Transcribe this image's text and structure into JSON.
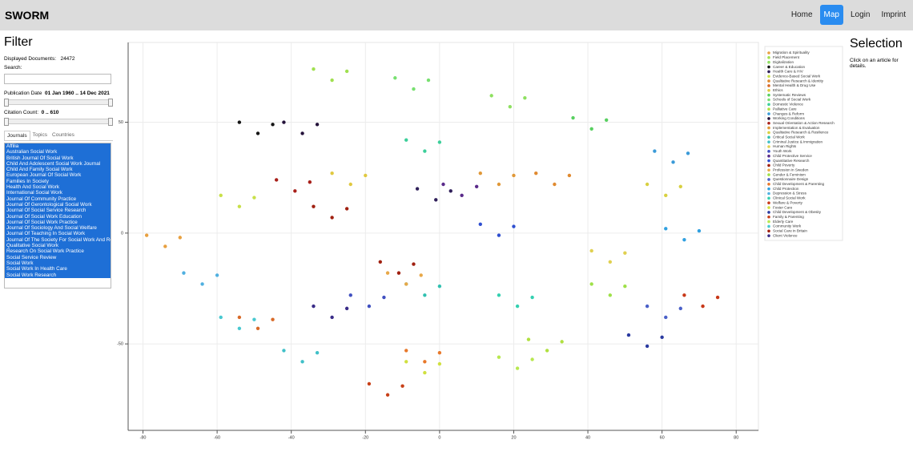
{
  "header": {
    "brand": "SWORM",
    "nav": [
      "Home",
      "Map",
      "Login",
      "Imprint"
    ]
  },
  "filter": {
    "title": "Filter",
    "documents_label": "Displayed Documents:",
    "documents_value": "24472",
    "search_label": "Search:",
    "date_label": "Publication Date",
    "date_value": "01 Jan 1960 .. 14 Dec 2021",
    "citation_label": "Citation Count:",
    "citation_value": "0 .. 610",
    "tabs": [
      "Journals",
      "Topics",
      "Countries"
    ],
    "journals": [
      "Affilia",
      "Australian Social Work",
      "British Journal Of Social Work",
      "Child And Adolescent Social Work Journal",
      "Child And Family Social Work",
      "European Journal Of Social Work",
      "Families In Society",
      "Health And Social Work",
      "International Social Work",
      "Journal Of Community Practice",
      "Journal Of Gerontological Social Work",
      "Journal Of Social Service Research",
      "Journal Of Social Work Education",
      "Journal Of Social Work Practice",
      "Journal Of Sociology And Social Welfare",
      "Journal Of Teaching In Social Work",
      "Journal Of The Society For Social Work And Research",
      "Qualitative Social Work",
      "Research On Social Work Practice",
      "Social Service Review",
      "Social Work",
      "Social Work In Health Care",
      "Social Work Research"
    ]
  },
  "selection": {
    "title": "Selection",
    "hint": "Click on an article for details."
  },
  "chart_data": {
    "type": "scatter",
    "xlim": [
      -84,
      86
    ],
    "ylim": [
      -89,
      86
    ],
    "xticks": [
      -80,
      -60,
      -40,
      -20,
      0,
      20,
      40,
      60,
      80
    ],
    "yticks": [
      -50,
      0,
      50
    ],
    "grid": true,
    "series": [
      {
        "name": "Migration & Spirituality",
        "color": "#e8a040",
        "x": [
          -79,
          -74,
          -70
        ],
        "values": [
          -1,
          -6,
          -2
        ]
      },
      {
        "name": "Field Placement",
        "color": "#a0e050",
        "x": [
          -34,
          -29,
          -25
        ],
        "values": [
          74,
          69,
          73
        ]
      },
      {
        "name": "Digitalization",
        "color": "#8ee060",
        "x": [
          14,
          19,
          23
        ],
        "values": [
          62,
          57,
          61
        ]
      },
      {
        "name": "Career & Education",
        "color": "#151515",
        "x": [
          -54,
          -49,
          -45
        ],
        "values": [
          50,
          45,
          49
        ]
      },
      {
        "name": "Health Care & HIV",
        "color": "#30205a",
        "x": [
          -6,
          -1,
          3
        ],
        "values": [
          20,
          15,
          19
        ]
      },
      {
        "name": "Evidence-Based Social Work",
        "color": "#c8e048",
        "x": [
          -59,
          -54,
          -50
        ],
        "values": [
          17,
          12,
          16
        ]
      },
      {
        "name": "Qualitative Research & Identity",
        "color": "#e08a30",
        "x": [
          26,
          31,
          35
        ],
        "values": [
          27,
          22,
          26
        ]
      },
      {
        "name": "Mental Health & Drug Use",
        "color": "#d86a28",
        "x": [
          -54,
          -49,
          -45
        ],
        "values": [
          -38,
          -43,
          -39
        ]
      },
      {
        "name": "Ethics",
        "color": "#e0c840",
        "x": [
          -29,
          -24,
          -20
        ],
        "values": [
          27,
          22,
          26
        ]
      },
      {
        "name": "Systematic Reviews",
        "color": "#58d060",
        "x": [
          36,
          41,
          45
        ],
        "values": [
          52,
          47,
          51
        ]
      },
      {
        "name": "Schools of Social Work",
        "color": "#78e070",
        "x": [
          -12,
          -7,
          -3
        ],
        "values": [
          70,
          65,
          69
        ]
      },
      {
        "name": "Domestic Violence",
        "color": "#3ccf9a",
        "x": [
          -9,
          -4,
          0
        ],
        "values": [
          42,
          37,
          41
        ]
      },
      {
        "name": "Palliative Care",
        "color": "#b0e040",
        "x": [
          24,
          29,
          33
        ],
        "values": [
          -48,
          -53,
          -49
        ]
      },
      {
        "name": "Changes & Reform",
        "color": "#3a9ad8",
        "x": [
          58,
          63,
          67
        ],
        "values": [
          37,
          32,
          36
        ]
      },
      {
        "name": "Working Conditions",
        "color": "#24123a",
        "x": [
          -42,
          -37,
          -33
        ],
        "values": [
          50,
          45,
          49
        ]
      },
      {
        "name": "Sexual Orientation & Action Research",
        "color": "#a8201a",
        "x": [
          -44,
          -39,
          -35
        ],
        "values": [
          24,
          19,
          23
        ]
      },
      {
        "name": "Implementation & Evaluation",
        "color": "#e09838",
        "x": [
          11,
          16,
          20
        ],
        "values": [
          27,
          22,
          26
        ]
      },
      {
        "name": "Qualitative Research & Resilience",
        "color": "#d8d040",
        "x": [
          56,
          61,
          65
        ],
        "values": [
          22,
          17,
          21
        ]
      },
      {
        "name": "Critical Social Work",
        "color": "#30c0b0",
        "x": [
          -9,
          -4,
          0
        ],
        "values": [
          -23,
          -28,
          -24
        ]
      },
      {
        "name": "Criminal Justice & Immigration",
        "color": "#40c0c8",
        "x": [
          -42,
          -37,
          -33
        ],
        "values": [
          -53,
          -58,
          -54
        ]
      },
      {
        "name": "Human Rights",
        "color": "#e0d050",
        "x": [
          41,
          46,
          50
        ],
        "values": [
          -8,
          -13,
          -9
        ]
      },
      {
        "name": "Youth Work",
        "color": "#4050c0",
        "x": [
          -24,
          -19,
          -15
        ],
        "values": [
          -28,
          -33,
          -29
        ]
      },
      {
        "name": "Child Protective Service",
        "color": "#5a2a8a",
        "x": [
          1,
          6,
          10
        ],
        "values": [
          22,
          17,
          21
        ]
      },
      {
        "name": "Quantitative Research",
        "color": "#2f4fd0",
        "x": [
          11,
          16,
          20
        ],
        "values": [
          4,
          -1,
          3
        ]
      },
      {
        "name": "Child Poverty",
        "color": "#a02010",
        "x": [
          -34,
          -29,
          -25
        ],
        "values": [
          12,
          7,
          11
        ]
      },
      {
        "name": "Profession in Sweden",
        "color": "#e8a848",
        "x": [
          -14,
          -9,
          -5
        ],
        "values": [
          -18,
          -23,
          -19
        ]
      },
      {
        "name": "Gender & Feminism",
        "color": "#9ee048",
        "x": [
          41,
          46,
          50
        ],
        "values": [
          -23,
          -28,
          -24
        ]
      },
      {
        "name": "Questionnaire Design",
        "color": "#4a60c8",
        "x": [
          56,
          61,
          65
        ],
        "values": [
          -33,
          -38,
          -34
        ]
      },
      {
        "name": "Child Development & Parenting",
        "color": "#e8782a",
        "x": [
          -9,
          -4,
          0
        ],
        "values": [
          -53,
          -58,
          -54
        ]
      },
      {
        "name": "Child Protection",
        "color": "#30a0e0",
        "x": [
          61,
          66,
          70
        ],
        "values": [
          2,
          -3,
          1
        ]
      },
      {
        "name": "Depression & Stress",
        "color": "#50b0e0",
        "x": [
          -69,
          -64,
          -60
        ],
        "values": [
          -18,
          -23,
          -19
        ]
      },
      {
        "name": "Clinical Social Work",
        "color": "#34d0b0",
        "x": [
          16,
          21,
          25
        ],
        "values": [
          -28,
          -33,
          -29
        ]
      },
      {
        "name": "Welfare & Poverty",
        "color": "#c83818",
        "x": [
          66,
          71,
          75
        ],
        "values": [
          -28,
          -33,
          -29
        ]
      },
      {
        "name": "Foster Care",
        "color": "#d0e040",
        "x": [
          -9,
          -4,
          0
        ],
        "values": [
          -58,
          -63,
          -59
        ]
      },
      {
        "name": "Child Development & Obesity",
        "color": "#2a3aa0",
        "x": [
          51,
          56,
          60
        ],
        "values": [
          -46,
          -51,
          -47
        ]
      },
      {
        "name": "Family & Parenting",
        "color": "#c84018",
        "x": [
          -19,
          -14,
          -10
        ],
        "values": [
          -68,
          -73,
          -69
        ]
      },
      {
        "name": "Elderly Care",
        "color": "#b8e850",
        "x": [
          16,
          21,
          25
        ],
        "values": [
          -56,
          -61,
          -57
        ]
      },
      {
        "name": "Community Work",
        "color": "#48c8d0",
        "x": [
          -59,
          -54,
          -50
        ],
        "values": [
          -38,
          -43,
          -39
        ]
      },
      {
        "name": "Social Care in Britain",
        "color": "#a02010",
        "x": [
          -16,
          -11,
          -7
        ],
        "values": [
          -13,
          -18,
          -14
        ]
      },
      {
        "name": "Client Violence",
        "color": "#3a2c88",
        "x": [
          -34,
          -29,
          -25
        ],
        "values": [
          -33,
          -38,
          -34
        ]
      }
    ]
  }
}
